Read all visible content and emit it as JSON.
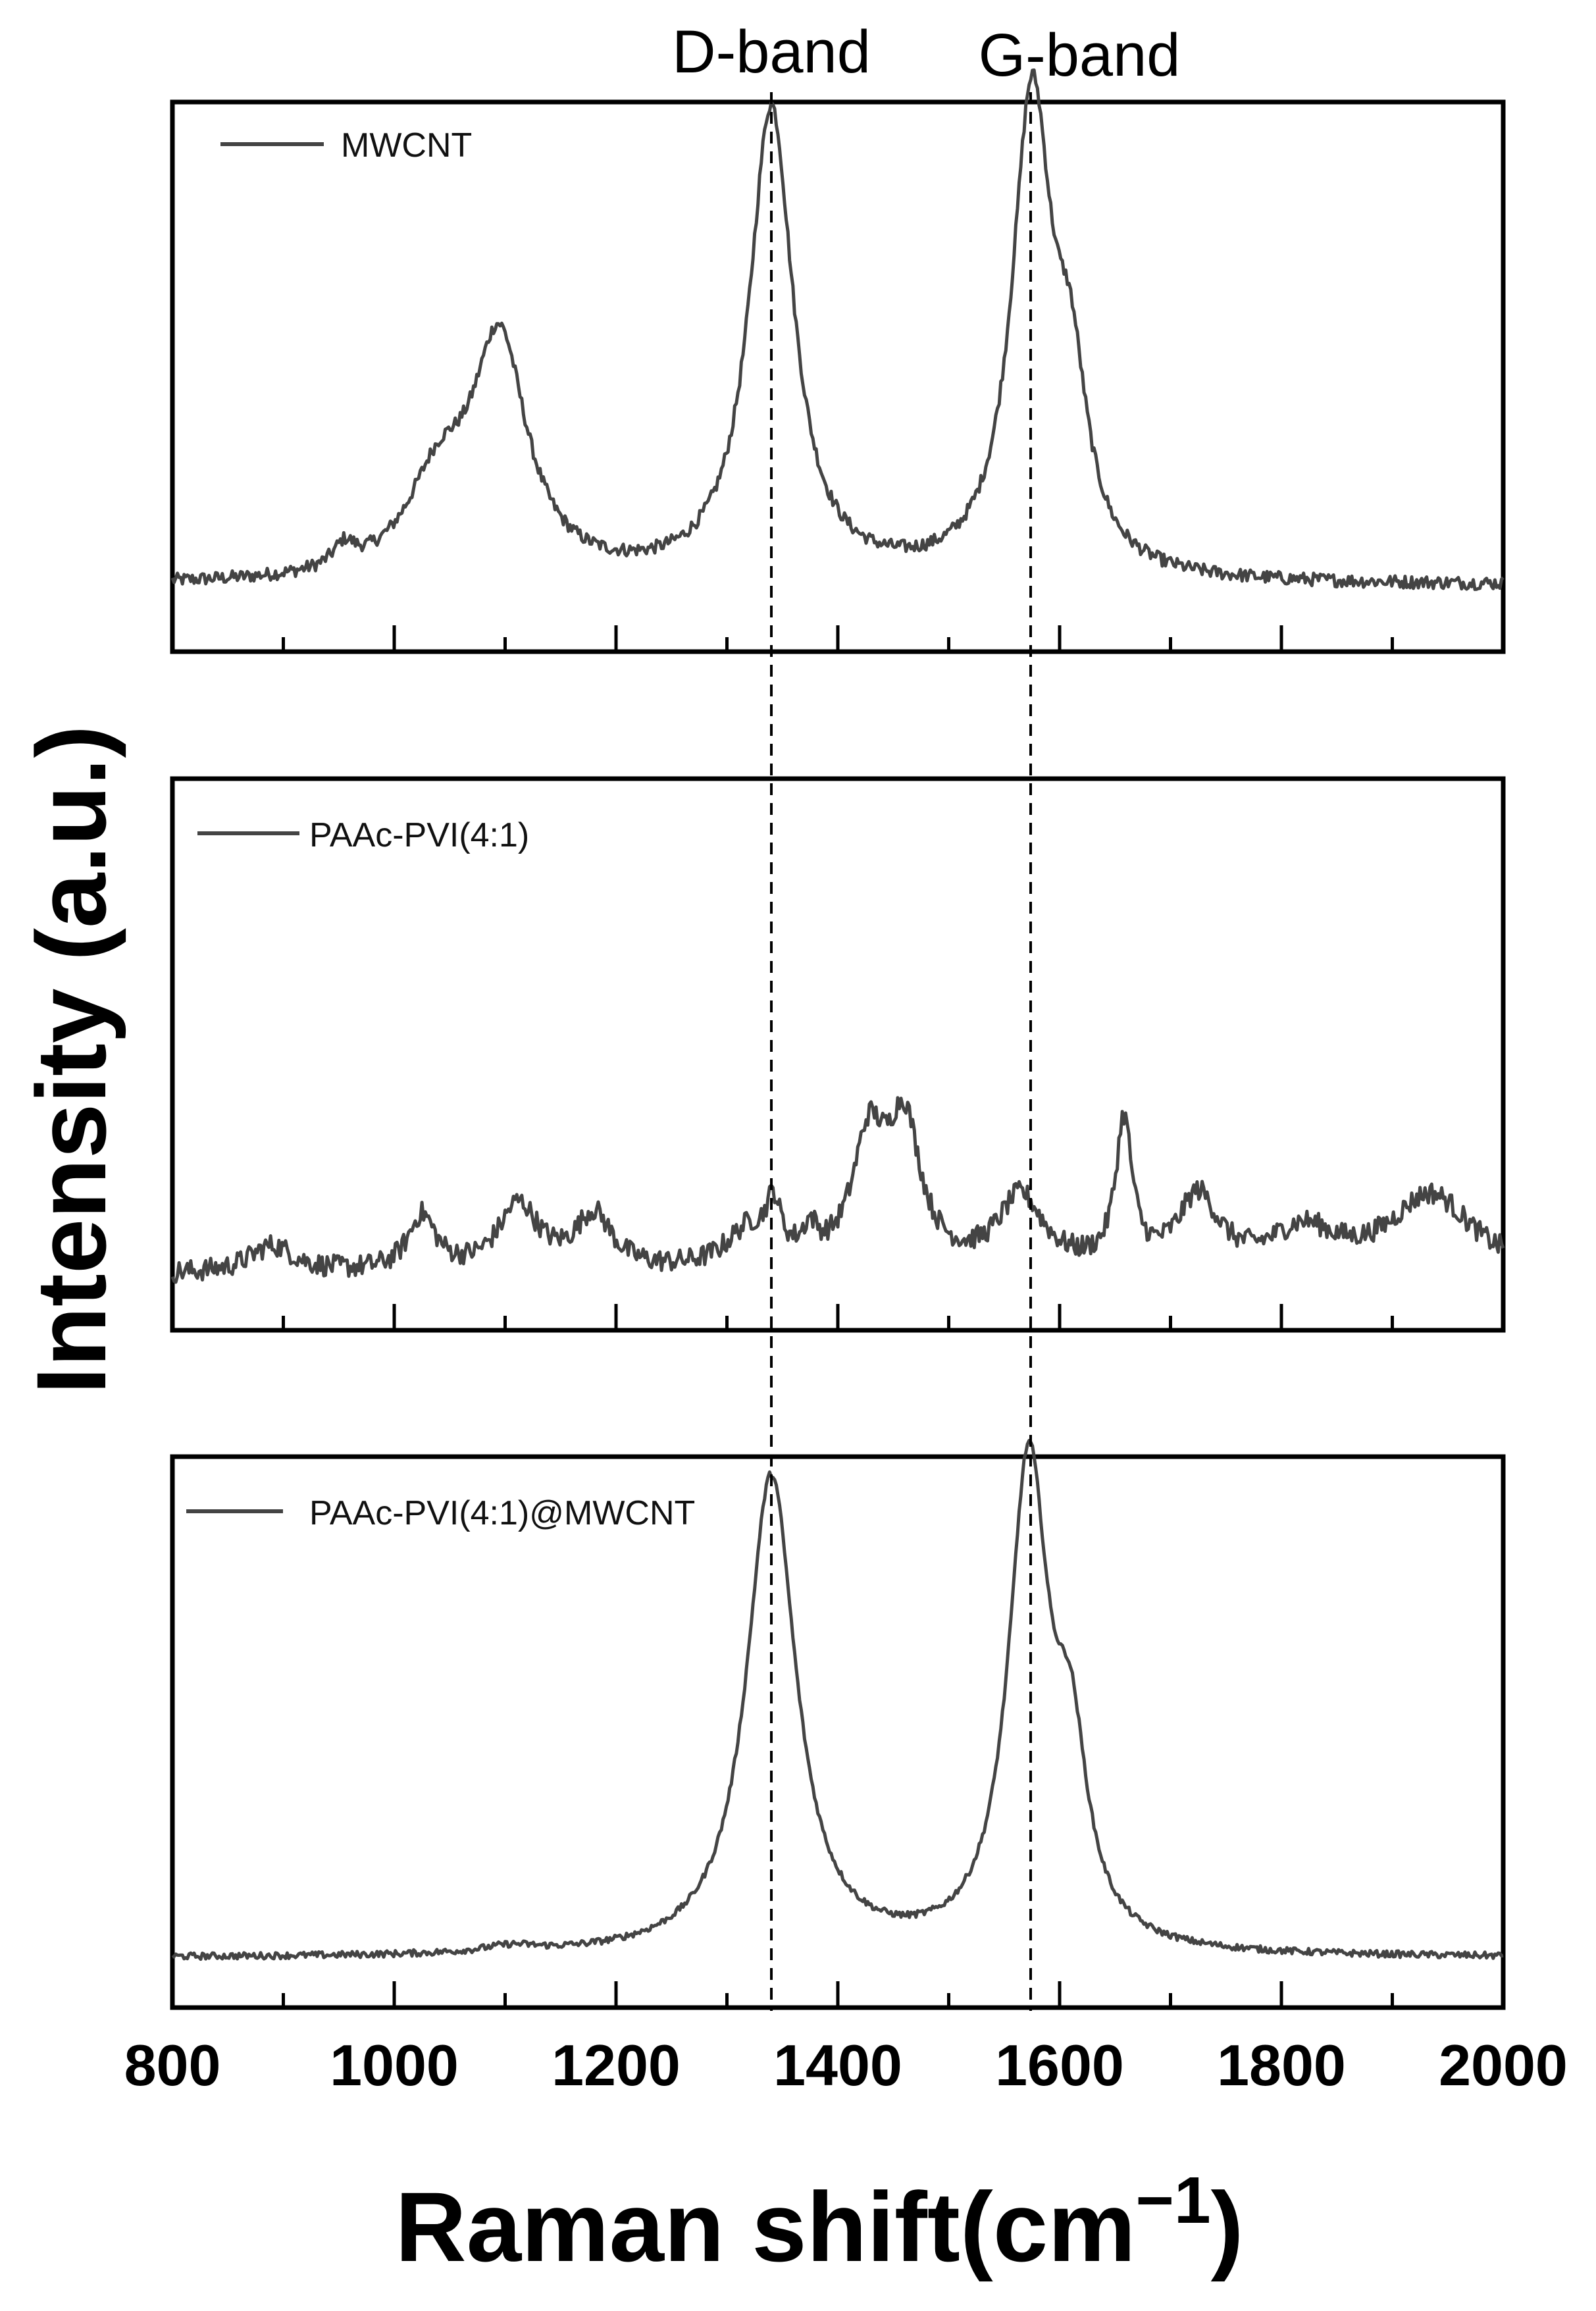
{
  "chart_data": {
    "type": "line",
    "title": "",
    "xlabel": "Raman shift(cm⁻¹)",
    "xlabel_main": "Raman shift(cm",
    "xlabel_sup": "−1",
    "xlabel_close": ")",
    "ylabel": "Intensity (a.u.)",
    "xlim": [
      800,
      2000
    ],
    "x_ticks": [
      800,
      1000,
      1200,
      1400,
      1600,
      1800,
      2000
    ],
    "x_minor_ticks": [
      900,
      1100,
      1300,
      1500,
      1700,
      1900
    ],
    "y_ticks": [],
    "grid": false,
    "layout": "3 stacked panels sharing x-axis",
    "annotations": [
      {
        "label": "D-band",
        "x": 1340,
        "style": "dashed vertical line across all panels"
      },
      {
        "label": "G-band",
        "x": 1575,
        "style": "dashed vertical line across all panels"
      }
    ],
    "series": [
      {
        "name": "MWCNT",
        "panel": 1,
        "legend_position": "top-left",
        "baseline": 0.12,
        "noise": 0.012,
        "peaks": [
          {
            "center": 955,
            "height": 0.04,
            "width": 12
          },
          {
            "center": 1040,
            "height": 0.16,
            "width": 35
          },
          {
            "center": 1095,
            "height": 0.42,
            "width": 30
          },
          {
            "center": 1340,
            "height": 0.86,
            "width": 24
          },
          {
            "center": 1575,
            "height": 0.86,
            "width": 22
          },
          {
            "center": 1610,
            "height": 0.28,
            "width": 18
          }
        ],
        "approx_points": [
          [
            800,
            0.12
          ],
          [
            950,
            0.16
          ],
          [
            1000,
            0.15
          ],
          [
            1050,
            0.32
          ],
          [
            1095,
            0.54
          ],
          [
            1150,
            0.12
          ],
          [
            1250,
            0.12
          ],
          [
            1300,
            0.22
          ],
          [
            1340,
            0.98
          ],
          [
            1380,
            0.22
          ],
          [
            1450,
            0.12
          ],
          [
            1530,
            0.12
          ],
          [
            1575,
            0.98
          ],
          [
            1610,
            0.55
          ],
          [
            1650,
            0.15
          ],
          [
            1700,
            0.12
          ],
          [
            1800,
            0.13
          ],
          [
            2000,
            0.12
          ]
        ]
      },
      {
        "name": "PAAc-PVI(4:1)",
        "panel": 2,
        "legend_position": "top-left",
        "baseline": 0.1,
        "noise": 0.02,
        "peaks": [
          {
            "center": 890,
            "height": 0.05,
            "width": 25
          },
          {
            "center": 1025,
            "height": 0.1,
            "width": 15
          },
          {
            "center": 1112,
            "height": 0.12,
            "width": 22
          },
          {
            "center": 1180,
            "height": 0.1,
            "width": 20
          },
          {
            "center": 1320,
            "height": 0.07,
            "width": 25
          },
          {
            "center": 1342,
            "height": 0.09,
            "width": 8
          },
          {
            "center": 1375,
            "height": 0.05,
            "width": 8
          },
          {
            "center": 1428,
            "height": 0.22,
            "width": 18
          },
          {
            "center": 1460,
            "height": 0.25,
            "width": 18
          },
          {
            "center": 1565,
            "height": 0.13,
            "width": 25
          },
          {
            "center": 1658,
            "height": 0.26,
            "width": 9
          },
          {
            "center": 1725,
            "height": 0.13,
            "width": 22
          },
          {
            "center": 1820,
            "height": 0.07,
            "width": 35
          },
          {
            "center": 1935,
            "height": 0.14,
            "width": 45
          }
        ],
        "approx_points": [
          [
            800,
            0.1
          ],
          [
            890,
            0.15
          ],
          [
            1025,
            0.2
          ],
          [
            1112,
            0.22
          ],
          [
            1180,
            0.2
          ],
          [
            1250,
            0.07
          ],
          [
            1340,
            0.2
          ],
          [
            1430,
            0.33
          ],
          [
            1460,
            0.36
          ],
          [
            1520,
            0.1
          ],
          [
            1565,
            0.22
          ],
          [
            1610,
            0.07
          ],
          [
            1658,
            0.36
          ],
          [
            1725,
            0.23
          ],
          [
            1820,
            0.17
          ],
          [
            1935,
            0.24
          ],
          [
            2000,
            0.04
          ]
        ]
      },
      {
        "name": "PAAc-PVI(4:1)@MWCNT",
        "panel": 3,
        "legend_position": "top-left",
        "baseline": 0.09,
        "noise": 0.006,
        "peaks": [
          {
            "center": 1105,
            "height": 0.012,
            "width": 30
          },
          {
            "center": 1340,
            "height": 0.87,
            "width": 27
          },
          {
            "center": 1572,
            "height": 0.87,
            "width": 22
          },
          {
            "center": 1610,
            "height": 0.3,
            "width": 18
          }
        ],
        "approx_points": [
          [
            800,
            0.09
          ],
          [
            1105,
            0.1
          ],
          [
            1250,
            0.1
          ],
          [
            1300,
            0.28
          ],
          [
            1340,
            0.96
          ],
          [
            1380,
            0.3
          ],
          [
            1460,
            0.09
          ],
          [
            1530,
            0.22
          ],
          [
            1572,
            0.98
          ],
          [
            1610,
            0.55
          ],
          [
            1650,
            0.14
          ],
          [
            1700,
            0.09
          ],
          [
            2000,
            0.09
          ]
        ]
      }
    ]
  },
  "figure": {
    "band_labels": {
      "d": "D-band",
      "g": "G-band"
    },
    "legends": [
      "MWCNT",
      "PAAc-PVI(4:1)",
      "PAAc-PVI(4:1)@MWCNT"
    ],
    "colors": {
      "line": "#444444",
      "axes": "#000000",
      "guide": "#000000",
      "background": "#ffffff"
    }
  }
}
